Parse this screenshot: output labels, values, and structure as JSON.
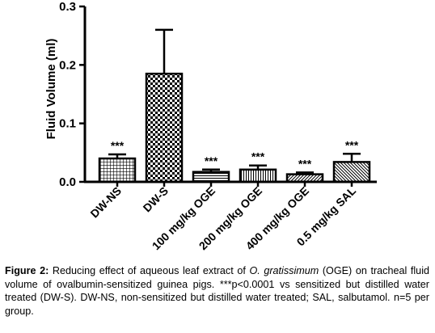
{
  "chart_data": {
    "type": "bar",
    "ylabel": "Fluid Volume (ml)",
    "ylim": [
      0,
      0.3
    ],
    "yticks": [
      "0.0",
      "0.1",
      "0.2",
      "0.3"
    ],
    "categories": [
      "DW-NS",
      "DW-S",
      "100 mg/kg OGE",
      "200 mg/kg OGE",
      "400 mg/kg OGE",
      "0.5 mg/kg SAL"
    ],
    "values": [
      0.04,
      0.185,
      0.017,
      0.021,
      0.013,
      0.034
    ],
    "errors": [
      0.007,
      0.075,
      0.004,
      0.007,
      0.003,
      0.014
    ],
    "significance": [
      "***",
      "",
      "***",
      "***",
      "***",
      "***"
    ],
    "patterns": [
      "grid",
      "checker",
      "hlines",
      "vlines",
      "diag-right",
      "diag-left"
    ],
    "grid": false,
    "legend": "none"
  },
  "caption": {
    "label": "Figure 2:",
    "text_before_italic": " Reducing effect of aqueous leaf extract of ",
    "italic": "O. gratissimum",
    "text_after_italic": " (OGE) on tracheal fluid volume of ovalbumin-sensitized guinea pigs. ***p<0.0001 vs sensitized but distilled water treated (DW-S). DW-NS, non-sensitized but distilled water treated; SAL, salbutamol. n=5 per group."
  }
}
